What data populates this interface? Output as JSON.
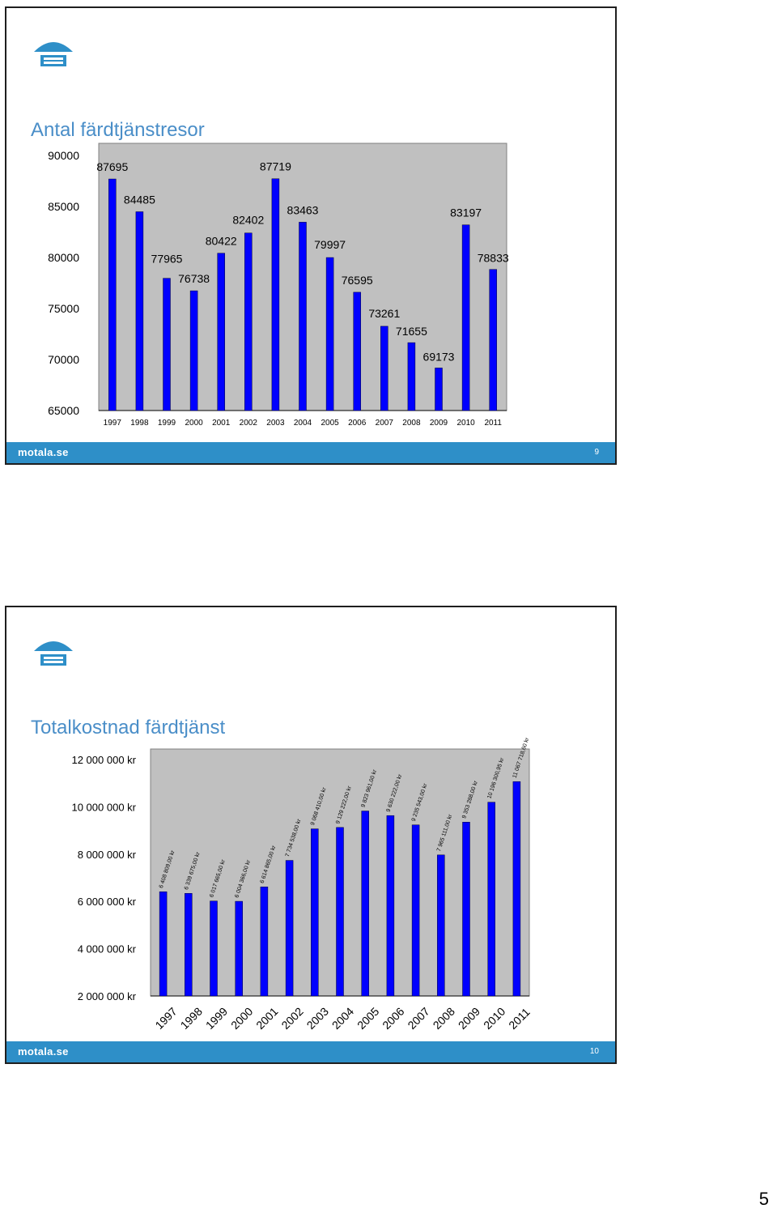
{
  "slides": [
    {
      "title": "Antal färdtjänstresor",
      "footer_site": "motala.se",
      "footer_page": "9"
    },
    {
      "title": "Totalkostnad färdtjänst",
      "footer_site": "motala.se",
      "footer_page": "10"
    }
  ],
  "page_number": "5",
  "colors": {
    "bar": "#0000ff",
    "plot_bg": "#c0c0c0",
    "accent": "#2e8fc8",
    "title": "#4a8ec8"
  },
  "chart_data": [
    {
      "type": "bar",
      "title": "Antal färdtjänstresor",
      "categories": [
        "1997",
        "1998",
        "1999",
        "2000",
        "2001",
        "2002",
        "2003",
        "2004",
        "2005",
        "2006",
        "2007",
        "2008",
        "2009",
        "2010",
        "2011"
      ],
      "values": [
        87695,
        84485,
        77965,
        76738,
        80422,
        82402,
        87719,
        83463,
        79997,
        76595,
        73261,
        71655,
        69173,
        83197,
        78833
      ],
      "data_labels": [
        "87695",
        "84485",
        "77965",
        "76738",
        "80422",
        "82402",
        "87719",
        "83463",
        "79997",
        "76595",
        "73261",
        "71655",
        "69173",
        "83197",
        "78833"
      ],
      "ylim": [
        65000,
        90000
      ],
      "yticks": [
        90000,
        85000,
        80000,
        75000,
        70000,
        65000
      ],
      "ytick_labels": [
        "90000",
        "85000",
        "80000",
        "75000",
        "70000",
        "65000"
      ],
      "grid": false,
      "legend": "none"
    },
    {
      "type": "bar",
      "title": "Totalkostnad färdtjänst",
      "categories": [
        "1997",
        "1998",
        "1999",
        "2000",
        "2001",
        "2002",
        "2003",
        "2004",
        "2005",
        "2006",
        "2007",
        "2008",
        "2009",
        "2010",
        "2011"
      ],
      "values": [
        6408809,
        6339675,
        6017665,
        6004366,
        6614865,
        7734538,
        9068410,
        9129222,
        9823961,
        9630222,
        9235543,
        7965111,
        9353288,
        10196300.95,
        11067718.6
      ],
      "data_labels": [
        "6 408 809,00 kr",
        "6 339 675,00 kr",
        "6 017 665,00 kr",
        "6 004 366,00 kr",
        "6 614 865,00 kr",
        "7 734 538,00 kr",
        "9 068 410,00 kr",
        "9 129 222,00 kr",
        "9 823 961,00 kr",
        "9 630 222,00 kr",
        "9 235 543,00 kr",
        "7 965 111,00 kr",
        "9 353 288,00 kr",
        "10 196 300,95 kr",
        "11 067 718,60 kr"
      ],
      "ylim": [
        2000000,
        12000000
      ],
      "yticks": [
        12000000,
        10000000,
        8000000,
        6000000,
        4000000,
        2000000
      ],
      "ytick_labels": [
        "12 000 000 kr",
        "10 000 000 kr",
        "8 000 000 kr",
        "6 000 000 kr",
        "4 000 000 kr",
        "2 000 000 kr"
      ],
      "grid": false,
      "legend": "none"
    }
  ]
}
